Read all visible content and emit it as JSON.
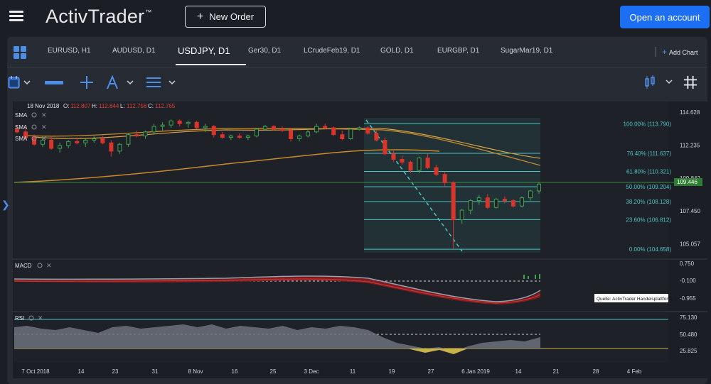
{
  "header": {
    "brand": "ActivTrader",
    "brand_tm": "™",
    "new_order_label": "New Order",
    "open_account_label": "Open an account"
  },
  "tabs": [
    {
      "label": "EURUSD, H1"
    },
    {
      "label": "AUDUSD, D1"
    },
    {
      "label": "USDJPY, D1",
      "active": true
    },
    {
      "label": "Ger30, D1"
    },
    {
      "label": "LCrudeFeb19, D1"
    },
    {
      "label": "GOLD, D1"
    },
    {
      "label": "EURGBP, D1"
    },
    {
      "label": "SugarMar19, D1"
    }
  ],
  "add_chart_label": "Add Chart",
  "chart": {
    "ohlc_date": "18 Nov 2018",
    "ohlc_o_label": "O:",
    "ohlc_o": "112.807",
    "ohlc_h_label": "H:",
    "ohlc_h": "112.844",
    "ohlc_l_label": "L:",
    "ohlc_l": "112.758",
    "ohlc_c_label": "C:",
    "ohlc_c": "112.765",
    "indicators": [
      "SMA",
      "SMA",
      "SMA"
    ],
    "macd_label": "MACD",
    "rsi_label": "RSI",
    "source_note": "Quelle: ActivTrader Handelsplattform",
    "last_price": "109.446"
  },
  "chart_data": {
    "type": "candlestick",
    "price_axis": [
      "114.628",
      "112.235",
      "109.842",
      "107.450",
      "105.057"
    ],
    "price_ylim": [
      104.3,
      115.0
    ],
    "fib_levels": [
      {
        "label": "100.00% (113.790)",
        "value": 113.79
      },
      {
        "label": "76.40% (111.637)",
        "value": 111.637
      },
      {
        "label": "61.80% (110.321)",
        "value": 110.321
      },
      {
        "label": "50.00% (109.204)",
        "value": 109.204
      },
      {
        "label": "38.20% (108.128)",
        "value": 108.128
      },
      {
        "label": "23.60% (106.812)",
        "value": 106.812
      },
      {
        "label": "0.00% (104.658)",
        "value": 104.658
      }
    ],
    "macd_axis": [
      "0.750",
      "-0.100",
      "-0.955"
    ],
    "rsi_axis": [
      "75.130",
      "50.480",
      "25.825"
    ],
    "x_labels": [
      "7 Oct 2018",
      "14",
      "23",
      "31",
      "8 Nov",
      "16",
      "25",
      "3 Dec",
      "11",
      "19",
      "27",
      "6 Jan 2019",
      "14",
      "21",
      "28",
      "4 Feb"
    ],
    "candles": [
      [
        113.4,
        113.7,
        113.1,
        113.2
      ],
      [
        113.2,
        113.5,
        112.6,
        112.8
      ],
      [
        112.8,
        113.0,
        112.2,
        112.3
      ],
      [
        112.3,
        112.8,
        112.1,
        112.6
      ],
      [
        112.6,
        112.9,
        111.9,
        112.0
      ],
      [
        112.0,
        112.4,
        111.7,
        112.2
      ],
      [
        112.2,
        112.6,
        112.0,
        112.5
      ],
      [
        112.5,
        112.8,
        112.3,
        112.4
      ],
      [
        112.4,
        112.7,
        112.1,
        112.6
      ],
      [
        112.6,
        112.9,
        112.4,
        112.7
      ],
      [
        112.7,
        112.9,
        112.3,
        112.4
      ],
      [
        112.4,
        112.6,
        111.4,
        111.8
      ],
      [
        111.8,
        112.4,
        111.6,
        112.3
      ],
      [
        112.3,
        113.1,
        112.1,
        113.0
      ],
      [
        113.0,
        113.3,
        112.8,
        112.9
      ],
      [
        112.9,
        113.3,
        112.7,
        113.2
      ],
      [
        113.2,
        113.8,
        113.0,
        113.6
      ],
      [
        113.6,
        113.9,
        113.3,
        113.7
      ],
      [
        113.7,
        114.1,
        113.5,
        114.0
      ],
      [
        114.0,
        114.1,
        113.6,
        113.8
      ],
      [
        113.8,
        114.0,
        113.5,
        113.9
      ],
      [
        113.9,
        114.0,
        113.4,
        113.5
      ],
      [
        113.5,
        113.8,
        113.2,
        113.6
      ],
      [
        113.6,
        113.7,
        112.8,
        113.0
      ],
      [
        113.0,
        113.2,
        112.7,
        112.8
      ],
      [
        112.8,
        113.0,
        112.6,
        112.9
      ],
      [
        112.9,
        113.1,
        112.7,
        112.8
      ],
      [
        112.8,
        113.0,
        112.6,
        112.9
      ],
      [
        112.9,
        113.5,
        112.8,
        113.4
      ],
      [
        113.4,
        113.7,
        113.3,
        113.6
      ],
      [
        113.6,
        113.7,
        113.3,
        113.4
      ],
      [
        113.4,
        113.6,
        113.2,
        113.3
      ],
      [
        113.3,
        113.5,
        112.5,
        112.7
      ],
      [
        112.7,
        113.0,
        112.5,
        112.9
      ],
      [
        112.9,
        113.4,
        112.8,
        113.2
      ],
      [
        113.2,
        113.8,
        113.1,
        113.6
      ],
      [
        113.6,
        113.8,
        113.4,
        113.5
      ],
      [
        113.5,
        113.6,
        112.9,
        113.0
      ],
      [
        113.0,
        113.3,
        112.6,
        112.7
      ],
      [
        112.7,
        113.5,
        112.6,
        113.4
      ],
      [
        113.4,
        113.6,
        113.3,
        113.5
      ],
      [
        113.5,
        113.6,
        113.0,
        113.1
      ],
      [
        113.1,
        113.3,
        112.5,
        112.6
      ],
      [
        112.6,
        112.8,
        111.5,
        111.6
      ],
      [
        111.6,
        111.9,
        111.0,
        111.2
      ],
      [
        111.2,
        111.5,
        110.8,
        111.0
      ],
      [
        111.0,
        111.1,
        110.2,
        110.4
      ],
      [
        110.4,
        111.4,
        110.2,
        111.3
      ],
      [
        111.3,
        111.6,
        110.5,
        110.6
      ],
      [
        110.6,
        110.8,
        110.0,
        110.1
      ],
      [
        110.1,
        110.3,
        109.2,
        109.5
      ],
      [
        109.5,
        109.6,
        104.7,
        106.8
      ],
      [
        106.8,
        107.6,
        106.5,
        107.5
      ],
      [
        107.5,
        108.3,
        107.2,
        108.2
      ],
      [
        108.2,
        108.6,
        107.9,
        108.4
      ],
      [
        108.4,
        108.7,
        107.6,
        107.7
      ],
      [
        107.7,
        108.4,
        107.6,
        108.3
      ],
      [
        108.3,
        108.5,
        108.0,
        108.2
      ],
      [
        108.2,
        108.3,
        107.7,
        107.8
      ],
      [
        107.8,
        108.5,
        107.7,
        108.4
      ],
      [
        108.4,
        109.0,
        108.2,
        108.9
      ],
      [
        108.9,
        109.5,
        108.7,
        109.4
      ]
    ]
  }
}
